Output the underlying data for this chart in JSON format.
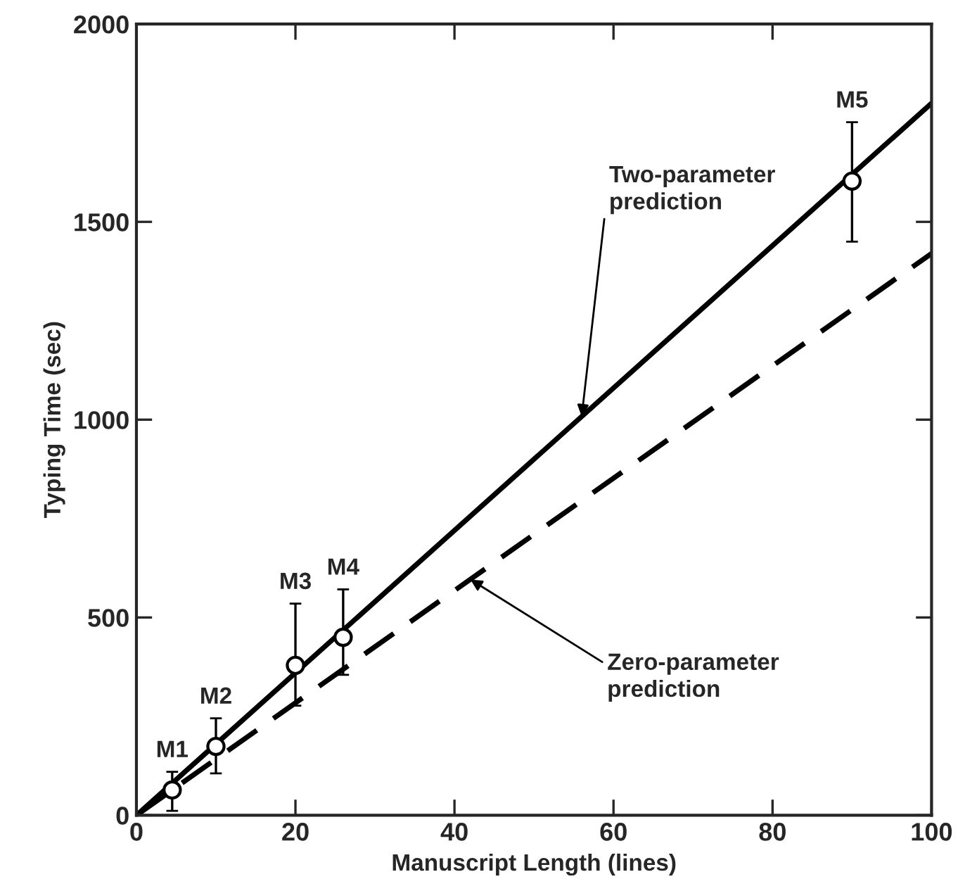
{
  "chart_data": {
    "type": "scatter",
    "xlabel": "Manuscript Length (lines)",
    "ylabel": "Typing Time (sec)",
    "xlim": [
      0,
      100
    ],
    "xticks": [
      0,
      20,
      40,
      60,
      80,
      100
    ],
    "ylim": [
      0,
      2000
    ],
    "yticks": [
      0,
      500,
      1000,
      1500,
      2000
    ],
    "grid": false,
    "series": [
      {
        "x": [
          4.5,
          10,
          20,
          26,
          90
        ],
        "values": [
          64,
          174,
          379,
          450,
          1603
        ],
        "errors": [
          [
            11,
            110
          ],
          [
            106,
            245
          ],
          [
            277,
            535
          ],
          [
            355,
            571
          ],
          [
            1450,
            1752
          ]
        ],
        "color": "#000000",
        "marker": "circle"
      },
      {
        "type": "line",
        "x": [
          0,
          100
        ],
        "values": [
          0,
          1800
        ],
        "color": "#000000",
        "line_style": "solid"
      },
      {
        "type": "line",
        "x": [
          0,
          100
        ],
        "values": [
          0,
          1420
        ],
        "color": "#000000",
        "line_style": "dashed"
      }
    ],
    "annotations": [
      {
        "text": "M1",
        "x": 4.5,
        "y": 110
      },
      {
        "text": "M2",
        "x": 10,
        "y": 245
      },
      {
        "text": "M3",
        "x": 20,
        "y": 535
      },
      {
        "text": "M4",
        "x": 26,
        "y": 571
      },
      {
        "text": "M5",
        "x": 90,
        "y": 1752
      },
      {
        "text": "Two-parameter\nprediction",
        "x": 56,
        "y": 1008
      },
      {
        "text": "Zero-parameter\nprediction",
        "x": 42,
        "y": 596
      }
    ]
  }
}
